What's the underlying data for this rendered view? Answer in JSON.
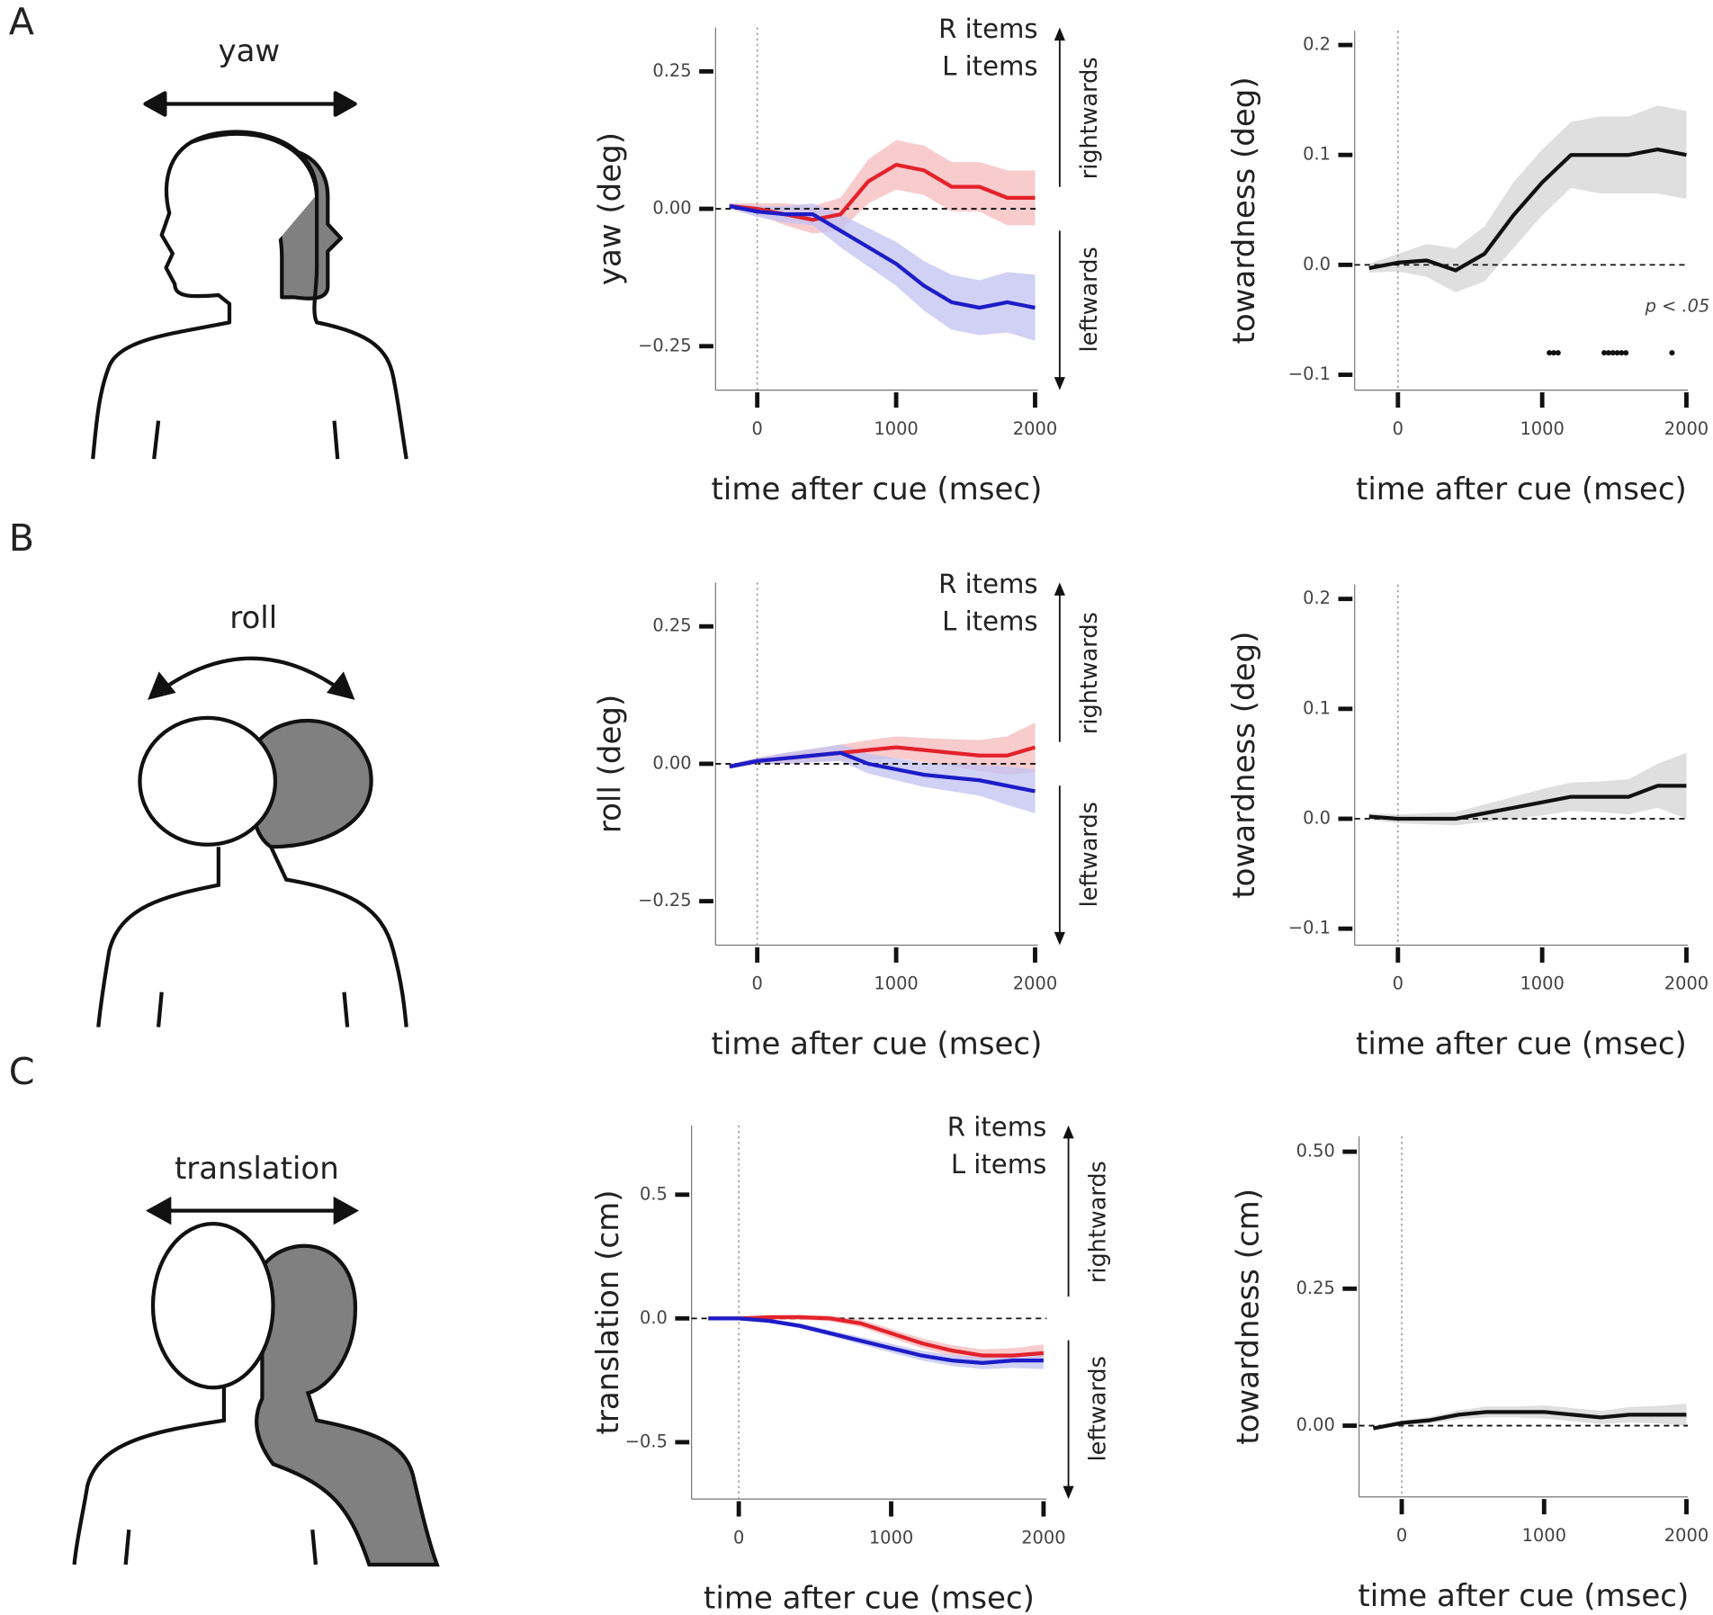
{
  "panels": [
    "A",
    "B",
    "C"
  ],
  "illustrations": [
    {
      "label": "yaw"
    },
    {
      "label": "roll"
    },
    {
      "label": "translation"
    }
  ],
  "chart_data": [
    {
      "type": "line",
      "y_label": "yaw (deg)",
      "x_label": "time after cue (msec)",
      "x": [
        -200,
        0,
        200,
        400,
        600,
        800,
        1000,
        1200,
        1400,
        1600,
        1800,
        2000
      ],
      "series": [
        {
          "name": "R items",
          "color": "#e3222b",
          "band_color": "#f6b9bc",
          "values": [
            0.005,
            0,
            -0.01,
            -0.02,
            -0.01,
            0.05,
            0.08,
            0.07,
            0.04,
            0.04,
            0.02,
            0.02
          ],
          "ci": [
            0.005,
            0.01,
            0.02,
            0.025,
            0.03,
            0.04,
            0.045,
            0.045,
            0.045,
            0.045,
            0.05,
            0.05
          ]
        },
        {
          "name": "L items",
          "color": "#1c1cc8",
          "band_color": "#c2c2f2",
          "values": [
            0.005,
            -0.005,
            -0.01,
            -0.01,
            -0.04,
            -0.07,
            -0.1,
            -0.14,
            -0.17,
            -0.18,
            -0.17,
            -0.18
          ],
          "ci": [
            0.005,
            0.01,
            0.015,
            0.02,
            0.03,
            0.035,
            0.04,
            0.045,
            0.05,
            0.05,
            0.055,
            0.06
          ]
        }
      ],
      "direction_labels": [
        "rightwards",
        "leftwards"
      ],
      "xlim": [
        -300,
        2020
      ],
      "ylim": [
        -0.33,
        0.33
      ],
      "xticks": [
        0,
        1000,
        2000
      ],
      "yticks": [
        {
          "value": -0.25,
          "label": "−0.25"
        },
        {
          "value": 0,
          "label": "0.00"
        },
        0.25
      ],
      "hline": 0,
      "vline": 0
    },
    {
      "type": "line",
      "y_label": "towardness (deg)",
      "x_label": "time after cue (msec)",
      "x": [
        -200,
        0,
        200,
        400,
        600,
        800,
        1000,
        1200,
        1400,
        1600,
        1800,
        2000
      ],
      "series": [
        {
          "color": "#111111",
          "band_color": "#d4d4d4",
          "values": [
            -0.003,
            0.002,
            0.004,
            -0.005,
            0.01,
            0.045,
            0.075,
            0.1,
            0.1,
            0.1,
            0.105,
            0.1
          ],
          "ci": [
            0.004,
            0.008,
            0.015,
            0.02,
            0.025,
            0.03,
            0.03,
            0.03,
            0.035,
            0.035,
            0.04,
            0.04
          ]
        }
      ],
      "sig_label": "p < .05",
      "sig_y": -0.08,
      "sig_x": [
        1050,
        1080,
        1110,
        1430,
        1460,
        1490,
        1520,
        1550,
        1580,
        1900
      ],
      "xlim": [
        -300,
        2010
      ],
      "ylim": [
        -0.114,
        0.213
      ],
      "xticks": [
        0,
        1000,
        2000
      ],
      "yticks": [
        {
          "value": -0.1,
          "label": "−0.1"
        },
        {
          "value": 0,
          "label": "0.0"
        },
        0.1,
        0.2
      ],
      "hline": 0,
      "vline": 0
    },
    {
      "type": "line",
      "y_label": "roll (deg)",
      "x_label": "time after cue (msec)",
      "x": [
        -200,
        0,
        200,
        400,
        600,
        800,
        1000,
        1200,
        1400,
        1600,
        1800,
        2000
      ],
      "series": [
        {
          "name": "R items",
          "color": "#e3222b",
          "band_color": "#f6b9bc",
          "values": [
            -0.005,
            0.005,
            0.01,
            0.015,
            0.02,
            0.025,
            0.03,
            0.025,
            0.02,
            0.015,
            0.015,
            0.03
          ],
          "ci": [
            0.004,
            0.006,
            0.01,
            0.012,
            0.015,
            0.018,
            0.02,
            0.022,
            0.025,
            0.028,
            0.035,
            0.045
          ]
        },
        {
          "name": "L items",
          "color": "#1c1cc8",
          "band_color": "#c2c2f2",
          "values": [
            -0.005,
            0.005,
            0.01,
            0.015,
            0.02,
            0.0,
            -0.01,
            -0.02,
            -0.025,
            -0.03,
            -0.04,
            -0.05
          ],
          "ci": [
            0.004,
            0.006,
            0.01,
            0.012,
            0.015,
            0.018,
            0.02,
            0.022,
            0.025,
            0.028,
            0.035,
            0.04
          ]
        }
      ],
      "direction_labels": [
        "rightwards",
        "leftwards"
      ],
      "xlim": [
        -300,
        2020
      ],
      "ylim": [
        -0.33,
        0.33
      ],
      "xticks": [
        0,
        1000,
        2000
      ],
      "yticks": [
        {
          "value": -0.25,
          "label": "−0.25"
        },
        {
          "value": 0,
          "label": "0.00"
        },
        0.25
      ],
      "hline": 0,
      "vline": 0
    },
    {
      "type": "line",
      "y_label": "towardness (deg)",
      "x_label": "time after cue (msec)",
      "x": [
        -200,
        0,
        200,
        400,
        600,
        800,
        1000,
        1200,
        1400,
        1600,
        1800,
        2000
      ],
      "series": [
        {
          "color": "#111111",
          "band_color": "#d4d4d4",
          "values": [
            0.002,
            0,
            0,
            0,
            0.005,
            0.01,
            0.015,
            0.02,
            0.02,
            0.02,
            0.03,
            0.03
          ],
          "ci": [
            0.003,
            0.004,
            0.005,
            0.006,
            0.008,
            0.01,
            0.012,
            0.013,
            0.014,
            0.016,
            0.02,
            0.03
          ]
        }
      ],
      "xlim": [
        -300,
        2010
      ],
      "ylim": [
        -0.115,
        0.213
      ],
      "xticks": [
        0,
        1000,
        2000
      ],
      "yticks": [
        {
          "value": -0.1,
          "label": "−0.1"
        },
        {
          "value": 0,
          "label": "0.0"
        },
        0.1,
        0.2
      ],
      "hline": 0,
      "vline": 0
    },
    {
      "type": "line",
      "y_label": "translation (cm)",
      "x_label": "time after cue (msec)",
      "x": [
        -200,
        0,
        200,
        400,
        600,
        800,
        1000,
        1200,
        1400,
        1600,
        1800,
        2000
      ],
      "series": [
        {
          "name": "R items",
          "color": "#e3222b",
          "band_color": "#f6b9bc",
          "values": [
            0,
            0,
            0.005,
            0.005,
            0,
            -0.02,
            -0.06,
            -0.1,
            -0.13,
            -0.15,
            -0.15,
            -0.14
          ],
          "ci": [
            0.003,
            0.005,
            0.008,
            0.01,
            0.012,
            0.015,
            0.018,
            0.02,
            0.022,
            0.025,
            0.03,
            0.035
          ]
        },
        {
          "name": "L items",
          "color": "#1c1cc8",
          "band_color": "#c2c2f2",
          "values": [
            0,
            0,
            -0.01,
            -0.03,
            -0.06,
            -0.09,
            -0.12,
            -0.15,
            -0.17,
            -0.18,
            -0.17,
            -0.17
          ],
          "ci": [
            0.003,
            0.005,
            0.008,
            0.01,
            0.012,
            0.015,
            0.018,
            0.02,
            0.022,
            0.025,
            0.03,
            0.035
          ]
        }
      ],
      "direction_labels": [
        "rightwards",
        "leftwards"
      ],
      "xlim": [
        -310,
        2020
      ],
      "ylim": [
        -0.73,
        0.78
      ],
      "xticks": [
        0,
        1000,
        2000
      ],
      "yticks": [
        {
          "value": -0.5,
          "label": "−0.5"
        },
        {
          "value": 0,
          "label": "0.0"
        },
        0.5
      ],
      "hline": 0,
      "vline": 0
    },
    {
      "type": "line",
      "y_label": "towardness (cm)",
      "x_label": "time after cue (msec)",
      "x": [
        -200,
        0,
        200,
        400,
        600,
        800,
        1000,
        1200,
        1400,
        1600,
        1800,
        2000
      ],
      "series": [
        {
          "color": "#111111",
          "band_color": "#d4d4d4",
          "values": [
            -0.005,
            0.005,
            0.01,
            0.02,
            0.025,
            0.025,
            0.025,
            0.02,
            0.015,
            0.02,
            0.02,
            0.02
          ],
          "ci": [
            0.003,
            0.004,
            0.006,
            0.008,
            0.01,
            0.01,
            0.012,
            0.012,
            0.012,
            0.014,
            0.016,
            0.02
          ]
        }
      ],
      "xlim": [
        -300,
        2010
      ],
      "ylim": [
        -0.13,
        0.528
      ],
      "xticks": [
        0,
        1000,
        2000
      ],
      "yticks": [
        {
          "value": 0,
          "label": "0.00"
        },
        0.25,
        {
          "value": 0.5,
          "label": "0.50"
        }
      ],
      "hline": 0,
      "vline": 0
    }
  ]
}
